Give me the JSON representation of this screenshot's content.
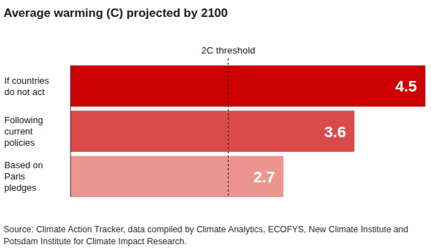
{
  "chart_data": {
    "type": "bar",
    "orientation": "horizontal",
    "title": "Average warming (C) projected by 2100",
    "categories": [
      "If countries\ndo not act",
      "Following\ncurrent\npolicies",
      "Based on\nParis\npledges"
    ],
    "values": [
      4.5,
      3.6,
      2.7
    ],
    "colors": [
      "#cc0000",
      "#db4a4a",
      "#ec9590"
    ],
    "xlim": [
      0,
      4.5
    ],
    "tick_labels": false,
    "grid": false,
    "data_labels": true,
    "annotations": [
      {
        "text": "2C threshold",
        "x": 2
      }
    ],
    "source": "Source: Climate Action Tracker, data compiled by Climate Analytics, ECOFYS, New Climate Institute and Potsdam Institute for Climate Impact Research."
  }
}
